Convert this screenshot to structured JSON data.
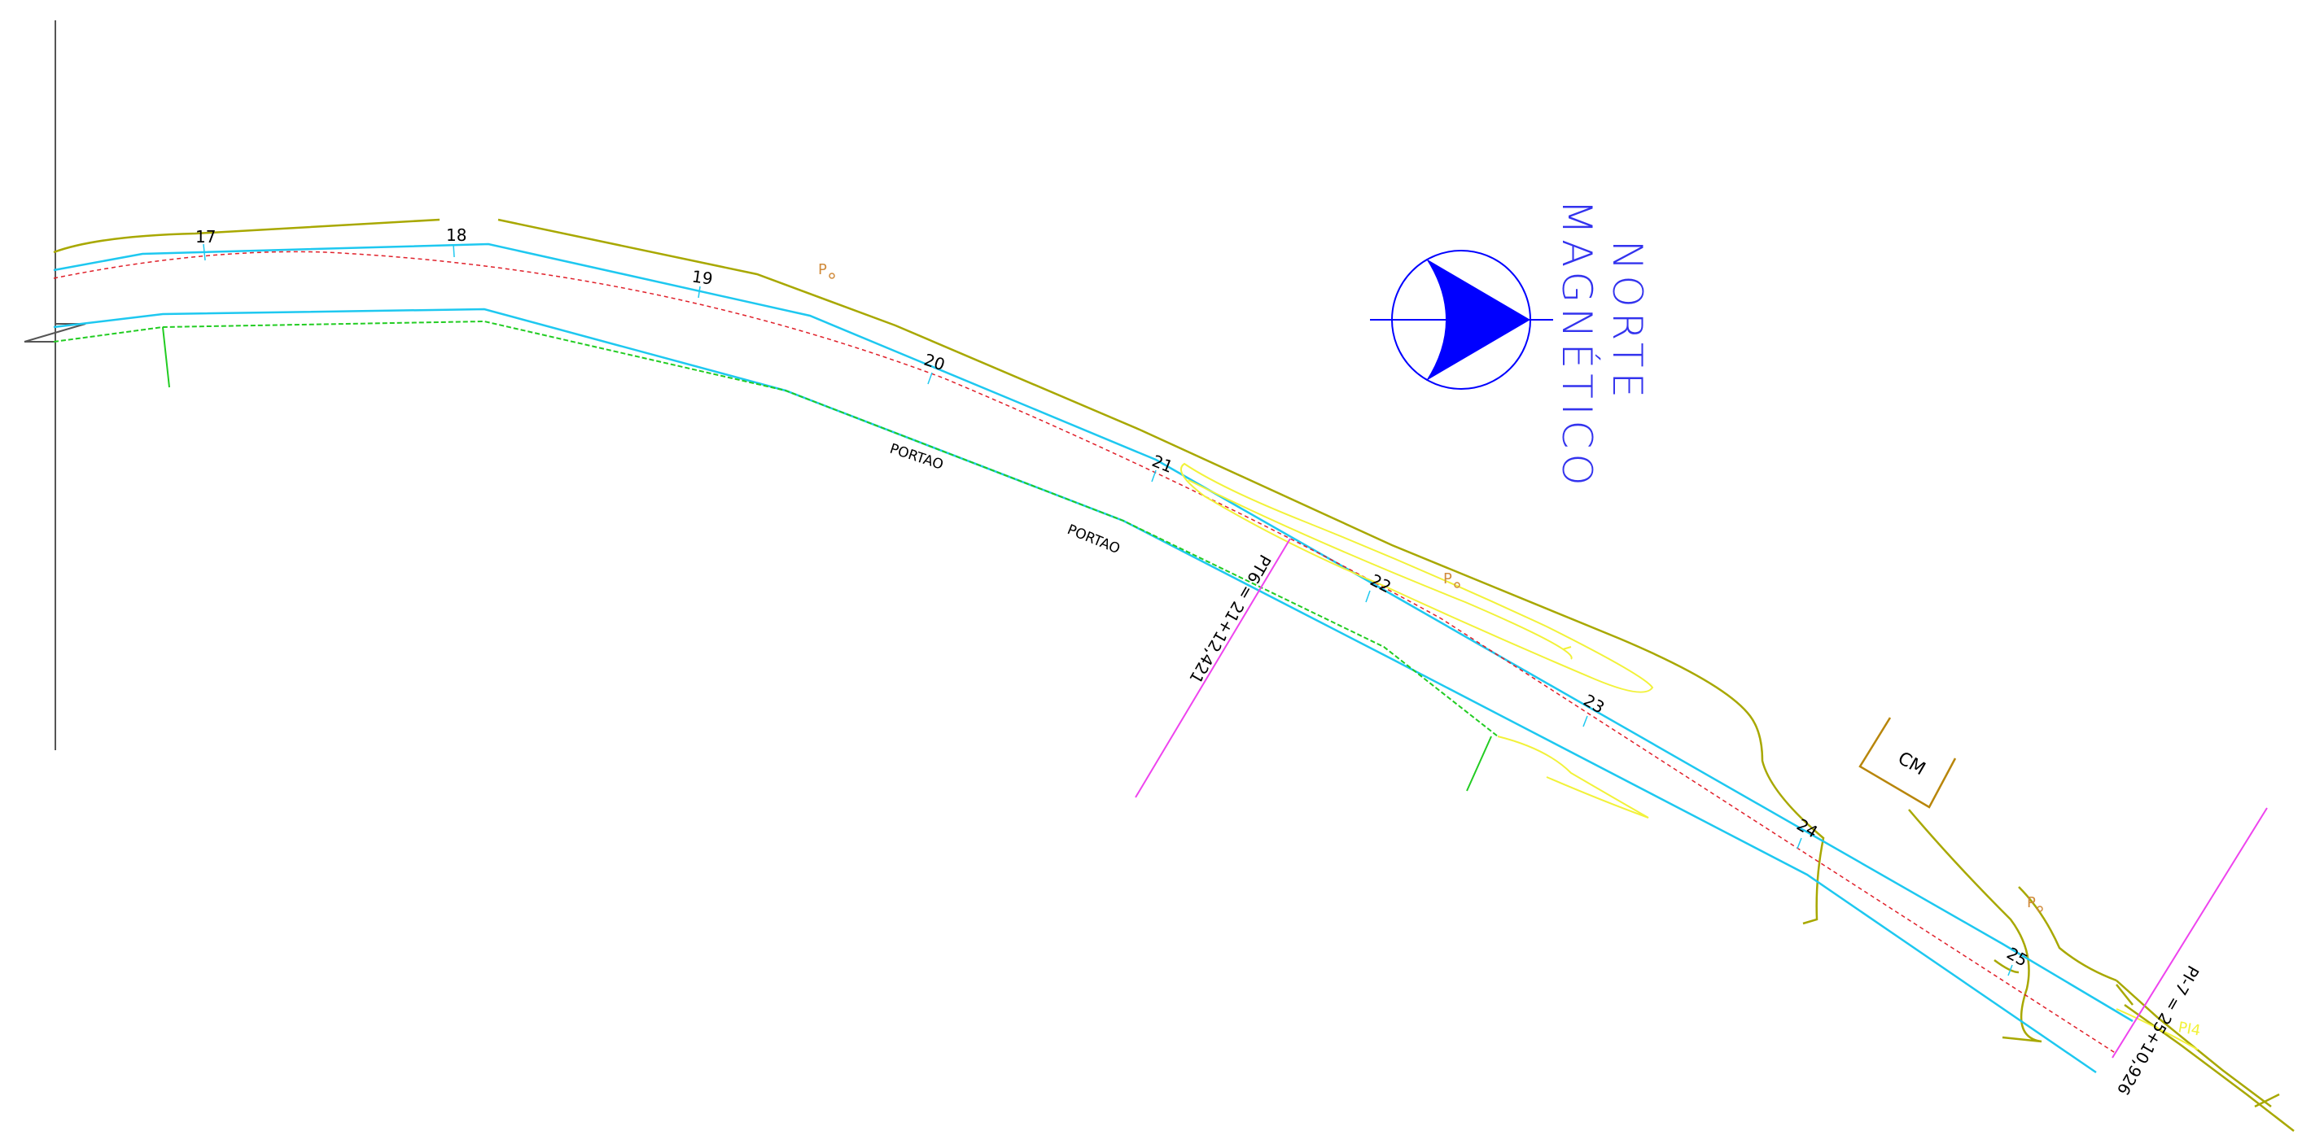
{
  "drawing": {
    "stations": [
      "17",
      "18",
      "19",
      "20",
      "21",
      "22",
      "23",
      "24",
      "25"
    ],
    "gate_labels": [
      "PORTAO",
      "PORTAO"
    ],
    "pole_label": "P",
    "building_label": "CM",
    "pt_label": "PT6 = 21+12,421",
    "pi_label": "PI-7 = 25+10,926",
    "pi_note": "PI4",
    "north": {
      "line1": "NORTE",
      "line2": "MAGNÉTICO"
    },
    "colors": {
      "road_edge": "#1ec8f0",
      "centerline": "#e0202a",
      "fence": "#22cc22",
      "terrain": "#a8a800",
      "contour": "#f2f23a",
      "pole": "#d08a3a",
      "section_line": "#ee44ee",
      "north_arrow": "#0000ff",
      "building": "#b8860b"
    }
  }
}
